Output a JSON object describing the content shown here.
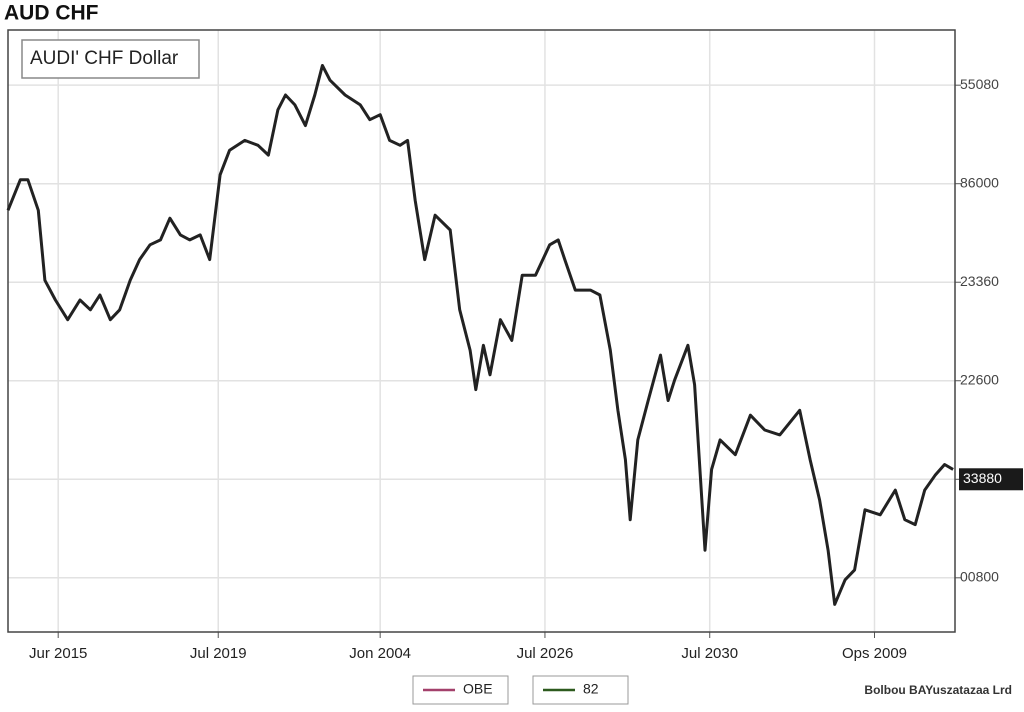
{
  "chart_data": {
    "type": "line",
    "title": "AUD CHF",
    "series": [
      {
        "name": "AUDI' CHF Dollar",
        "color": "#222222",
        "x": [
          0,
          1.3,
          2.1,
          3.2,
          3.9,
          5.0,
          6.3,
          7.6,
          8.7,
          9.7,
          10.8,
          11.8,
          12.9,
          13.9,
          15.0,
          16.1,
          17.1,
          18.2,
          19.2,
          20.3,
          21.3,
          22.4,
          23.4,
          25.0,
          26.4,
          27.5,
          28.5,
          29.3,
          30.3,
          31.4,
          32.4,
          33.2,
          34.0,
          35.6,
          37.2,
          38.2,
          39.3,
          40.3,
          41.4,
          42.2,
          43.0,
          44.0,
          45.1,
          46.7,
          47.7,
          48.8,
          49.4,
          50.2,
          50.9,
          52.0,
          53.2,
          54.3,
          55.7,
          57.2,
          58.1,
          58.8,
          59.9,
          61.5,
          62.5,
          63.6,
          64.4,
          65.2,
          65.7,
          66.5,
          67.6,
          68.9,
          69.7,
          70.4,
          71.8,
          72.5,
          73.6,
          74.3,
          75.2,
          76.8,
          78.4,
          79.9,
          81.5,
          83.6,
          84.7,
          85.7,
          86.6,
          87.3,
          88.4,
          89.4,
          90.5,
          92.1,
          93.7,
          94.7,
          95.8,
          96.8,
          97.9,
          98.9,
          99.8
        ],
        "values": [
          4.73,
          5.04,
          5.04,
          4.73,
          4.02,
          3.82,
          3.62,
          3.82,
          3.72,
          3.87,
          3.62,
          3.72,
          4.02,
          4.23,
          4.38,
          4.43,
          4.65,
          4.48,
          4.43,
          4.48,
          4.23,
          5.09,
          5.34,
          5.44,
          5.39,
          5.29,
          5.75,
          5.9,
          5.8,
          5.59,
          5.9,
          6.2,
          6.05,
          5.9,
          5.8,
          5.65,
          5.7,
          5.44,
          5.39,
          5.44,
          4.83,
          4.23,
          4.68,
          4.53,
          3.72,
          3.31,
          2.91,
          3.36,
          3.06,
          3.62,
          3.41,
          4.07,
          4.07,
          4.38,
          4.43,
          4.23,
          3.92,
          3.92,
          3.87,
          3.31,
          2.7,
          2.2,
          1.59,
          2.4,
          2.8,
          3.26,
          2.8,
          3.01,
          3.36,
          2.96,
          1.28,
          2.1,
          2.4,
          2.25,
          2.65,
          2.5,
          2.45,
          2.7,
          2.2,
          1.79,
          1.28,
          0.73,
          0.98,
          1.08,
          1.69,
          1.64,
          1.89,
          1.59,
          1.54,
          1.89,
          2.04,
          2.15,
          2.1
        ]
      }
    ],
    "xlim": [
      0,
      100
    ],
    "xticks": [
      {
        "value": 5.3,
        "label": "Jur 2015"
      },
      {
        "value": 22.2,
        "label": "Jul 2019"
      },
      {
        "value": 39.3,
        "label": "Jon 2004"
      },
      {
        "value": 56.7,
        "label": "Jul 2026"
      },
      {
        "value": 74.1,
        "label": "Jul 2030"
      },
      {
        "value": 91.5,
        "label": "Ops 2009"
      }
    ],
    "ylim": [
      0.45,
      6.56
    ],
    "yticks": [
      {
        "value": 6,
        "label": "55080"
      },
      {
        "value": 5,
        "label": "86000"
      },
      {
        "value": 4,
        "label": "23360"
      },
      {
        "value": 3,
        "label": "22600"
      },
      {
        "value": 2,
        "label": "33880"
      },
      {
        "value": 1,
        "label": "00800"
      }
    ],
    "highlight_tick": 4,
    "grid": true,
    "legend": [
      {
        "name": "OBE",
        "color": "#a3406b"
      },
      {
        "name": "82",
        "color": "#2d5a1e"
      }
    ],
    "source": "Bolbou BAYuszatazaa Lrd"
  }
}
